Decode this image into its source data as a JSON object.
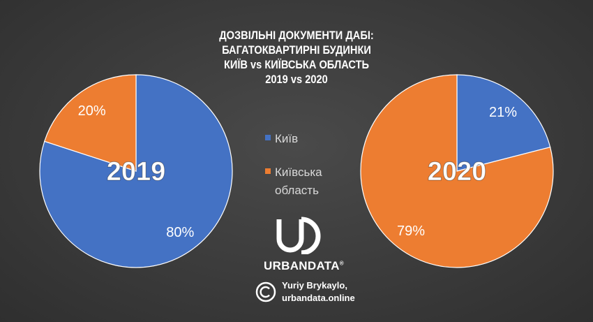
{
  "title": {
    "line1": "ДОЗВІЛЬНІ ДОКУМЕНТИ ДАБІ:",
    "line2": "БАГАТОКВАРТИРНІ БУДИНКИ",
    "line3": "КИЇВ vs КИЇВСЬКА ОБЛАСТЬ",
    "line4": "2019 vs 2020"
  },
  "legend": {
    "kyiv": "Київ",
    "oblast_line1": "Київська",
    "oblast_line2": "область"
  },
  "logo": {
    "brand": "URBANDATA",
    "mark": "®"
  },
  "credit": {
    "line1": "Yuriy Brykaylo,",
    "line2": "urbandata.online"
  },
  "colors": {
    "kyiv": "#4472c4",
    "oblast": "#ed7d31"
  },
  "chart_data": [
    {
      "type": "pie",
      "label": "2019",
      "series": [
        {
          "name": "Київ",
          "value": 80,
          "label": "80%"
        },
        {
          "name": "Київська область",
          "value": 20,
          "label": "20%"
        }
      ]
    },
    {
      "type": "pie",
      "label": "2020",
      "series": [
        {
          "name": "Київ",
          "value": 21,
          "label": "21%"
        },
        {
          "name": "Київська область",
          "value": 79,
          "label": "79%"
        }
      ]
    }
  ]
}
